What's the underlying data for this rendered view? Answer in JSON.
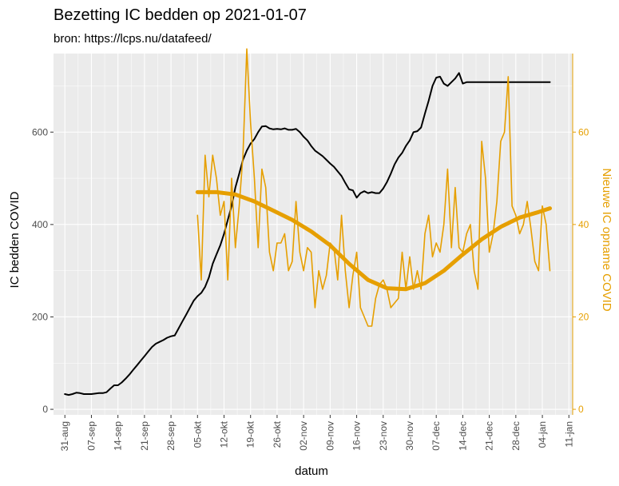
{
  "chart_data": {
    "type": "line",
    "title": "Bezetting IC bedden op 2021-01-07",
    "subtitle": "bron: https://lcps.nu/datafeed/",
    "xlabel": "datum",
    "ylabel": "IC bedden COVID",
    "y2label": "Nieuwe IC opname COVID",
    "x_ticks": [
      "31-aug",
      "07-sep",
      "14-sep",
      "21-sep",
      "28-sep",
      "05-okt",
      "12-okt",
      "19-okt",
      "26-okt",
      "02-nov",
      "09-nov",
      "16-nov",
      "23-nov",
      "30-nov",
      "07-dec",
      "14-dec",
      "21-dec",
      "28-dec",
      "04-jan",
      "11-jan"
    ],
    "x_range_days": [
      -3,
      134
    ],
    "ylim": [
      -12,
      770
    ],
    "y_ticks": [
      0,
      200,
      400,
      600
    ],
    "y2lim": [
      -1.2,
      77
    ],
    "y2_ticks": [
      0,
      20,
      40,
      60
    ],
    "grid": true,
    "colors": {
      "primary": "#000000",
      "secondary": "#E69F00",
      "panel": "#EBEBEB",
      "grid": "#FFFFFF"
    },
    "series": [
      {
        "axis": "left",
        "x": [
          0,
          1,
          2,
          3,
          4,
          5,
          6,
          7,
          8,
          9,
          10,
          11,
          12,
          13,
          14,
          15,
          16,
          17,
          18,
          19,
          20,
          21,
          22,
          23,
          24,
          25,
          26,
          27,
          28,
          29,
          30,
          31,
          32,
          33,
          34,
          35,
          36,
          37,
          38,
          39,
          40,
          41,
          42,
          43,
          44,
          45,
          46,
          47,
          48,
          49,
          50,
          51,
          52,
          53,
          54,
          55,
          56,
          57,
          58,
          59,
          60,
          61,
          62,
          63,
          64,
          65,
          66,
          67,
          68,
          69,
          70,
          71,
          72,
          73,
          74,
          75,
          76,
          77,
          78,
          79,
          80,
          81,
          82,
          83,
          84,
          85,
          86,
          87,
          88,
          89,
          90,
          91,
          92,
          93,
          94,
          95,
          96,
          97,
          98,
          99,
          100,
          101,
          102,
          103,
          104,
          105,
          106,
          107,
          108,
          109,
          110,
          111,
          112,
          113,
          114,
          115,
          116,
          117,
          118,
          119,
          120,
          121,
          122,
          123,
          124,
          125,
          126,
          127,
          128
        ],
        "values": [
          33,
          31,
          33,
          36,
          35,
          33,
          33,
          33,
          34,
          35,
          35,
          37,
          45,
          52,
          52,
          58,
          66,
          75,
          85,
          95,
          105,
          115,
          125,
          135,
          142,
          146,
          150,
          155,
          158,
          160,
          175,
          190,
          205,
          220,
          235,
          245,
          252,
          265,
          285,
          315,
          335,
          355,
          380,
          410,
          440,
          480,
          510,
          540,
          560,
          575,
          585,
          600,
          612,
          613,
          608,
          606,
          607,
          606,
          608,
          605,
          605,
          607,
          600,
          590,
          582,
          570,
          560,
          554,
          548,
          540,
          532,
          525,
          515,
          505,
          490,
          476,
          474,
          458,
          468,
          472,
          468,
          470,
          468,
          468,
          478,
          492,
          510,
          530,
          545,
          555,
          570,
          582,
          600,
          602,
          610,
          640,
          668,
          700,
          718,
          720,
          705,
          700,
          708,
          716,
          728,
          705,
          708,
          708,
          708,
          708,
          708,
          708,
          708,
          708,
          708,
          708,
          708,
          708,
          708,
          708,
          708,
          708,
          708,
          708,
          708,
          708,
          708,
          708,
          708
        ]
      },
      {
        "axis": "right",
        "x": [
          35,
          36,
          37,
          38,
          39,
          40,
          41,
          42,
          43,
          44,
          45,
          46,
          47,
          48,
          49,
          50,
          51,
          52,
          53,
          54,
          55,
          56,
          57,
          58,
          59,
          60,
          61,
          62,
          63,
          64,
          65,
          66,
          67,
          68,
          69,
          70,
          71,
          72,
          73,
          74,
          75,
          76,
          77,
          78,
          79,
          80,
          81,
          82,
          83,
          84,
          85,
          86,
          87,
          88,
          89,
          90,
          91,
          92,
          93,
          94,
          95,
          96,
          97,
          98,
          99,
          100,
          101,
          102,
          103,
          104,
          105,
          106,
          107,
          108,
          109,
          110,
          111,
          112,
          113,
          114,
          115,
          116,
          117,
          118,
          119,
          120,
          121,
          122,
          123,
          124,
          125,
          126,
          127,
          128
        ],
        "values": [
          42,
          28,
          55,
          46,
          55,
          50,
          42,
          45,
          28,
          50,
          35,
          44,
          55,
          78,
          62,
          50,
          35,
          52,
          48,
          34,
          30,
          36,
          36,
          38,
          30,
          32,
          45,
          34,
          30,
          35,
          34,
          22,
          30,
          26,
          29,
          36,
          35,
          28,
          42,
          30,
          22,
          29,
          34,
          22,
          20,
          18,
          18,
          24,
          27,
          28,
          26,
          22,
          23,
          24,
          34,
          26,
          33,
          26,
          30,
          26,
          38,
          42,
          33,
          36,
          34,
          40,
          52,
          35,
          48,
          35,
          34,
          38,
          40,
          30,
          26,
          58,
          50,
          34,
          38,
          45,
          58,
          60,
          72,
          44,
          42,
          38,
          40,
          45,
          39,
          32,
          30,
          44,
          40,
          30
        ]
      },
      {
        "axis": "right",
        "type": "smooth",
        "x": [
          35,
          40,
          45,
          50,
          55,
          60,
          65,
          70,
          75,
          80,
          85,
          90,
          95,
          100,
          105,
          110,
          115,
          120,
          125,
          128
        ],
        "values": [
          47,
          47,
          46.5,
          45,
          43,
          41,
          38.5,
          35.5,
          31.5,
          28,
          26.2,
          26,
          27.3,
          30,
          33.5,
          36.8,
          39.5,
          41.5,
          42.7,
          43.5
        ]
      }
    ]
  }
}
